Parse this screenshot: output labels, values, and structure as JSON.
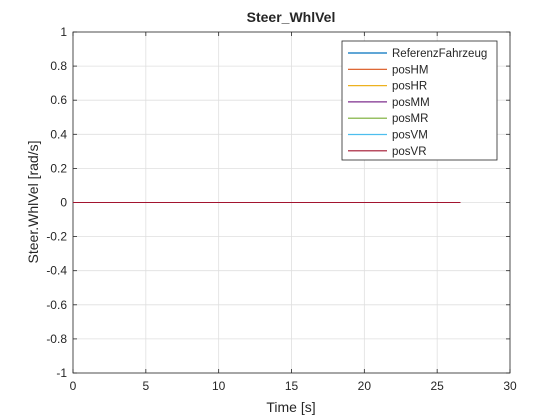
{
  "chart_data": {
    "type": "line",
    "title": "Steer_WhlVel",
    "xlabel": "Time [s]",
    "ylabel": "Steer.WhlVel [rad/s]",
    "xlim": [
      0,
      30
    ],
    "ylim": [
      -1,
      1
    ],
    "xticks": [
      0,
      5,
      10,
      15,
      20,
      25,
      30
    ],
    "yticks": [
      -1,
      -0.8,
      -0.6,
      -0.4,
      -0.2,
      0,
      0.2,
      0.4,
      0.6,
      0.8,
      1
    ],
    "xtick_labels": [
      "0",
      "5",
      "10",
      "15",
      "20",
      "25",
      "30"
    ],
    "ytick_labels": [
      "-1",
      "-0.8",
      "-0.6",
      "-0.4",
      "-0.2",
      "0",
      "0.2",
      "0.4",
      "0.6",
      "0.8",
      "1"
    ],
    "grid": true,
    "legend_position": "top-right",
    "series": [
      {
        "name": "ReferenzFahrzeug",
        "color": "#0072BD",
        "x": [
          0,
          26.6
        ],
        "y": [
          0,
          0
        ]
      },
      {
        "name": "posHM",
        "color": "#D95319",
        "x": [
          0,
          26.6
        ],
        "y": [
          0,
          0
        ]
      },
      {
        "name": "posHR",
        "color": "#EDB120",
        "x": [
          0,
          26.6
        ],
        "y": [
          0,
          0
        ]
      },
      {
        "name": "posMM",
        "color": "#7E2F8E",
        "x": [
          0,
          26.6
        ],
        "y": [
          0,
          0
        ]
      },
      {
        "name": "posMR",
        "color": "#77AC30",
        "x": [
          0,
          26.6
        ],
        "y": [
          0,
          0
        ]
      },
      {
        "name": "posVM",
        "color": "#4DBEEE",
        "x": [
          0,
          26.6
        ],
        "y": [
          0,
          0
        ]
      },
      {
        "name": "posVR",
        "color": "#A2142F",
        "x": [
          0,
          26.6
        ],
        "y": [
          0,
          0
        ]
      }
    ]
  }
}
